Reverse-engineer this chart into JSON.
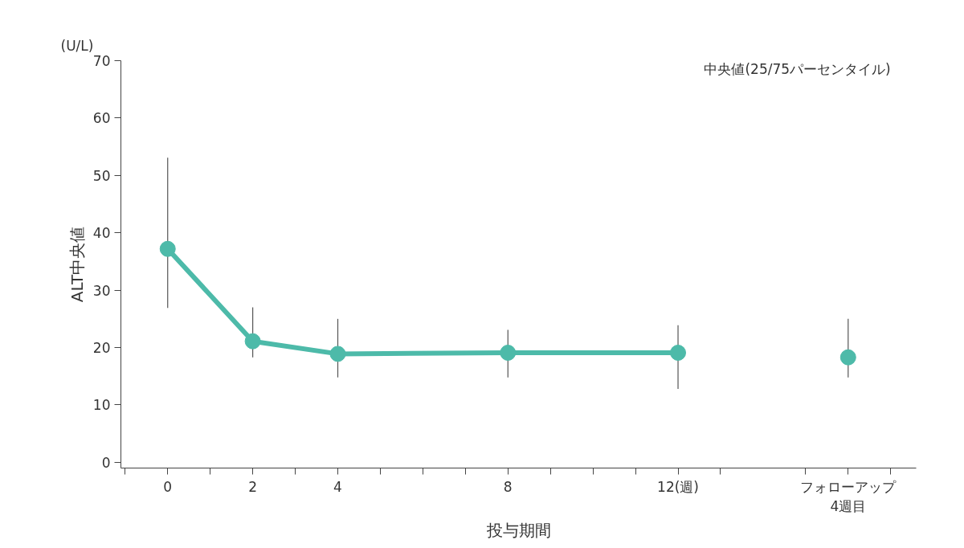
{
  "chart_data": {
    "type": "line",
    "xlabel": "投与期間",
    "ylabel": "ALT中央値",
    "annotations": [
      "(U/L)",
      "中央値(25/75パーセンタイル)"
    ],
    "xlim": [
      -1.1,
      17.6
    ],
    "ylim": [
      -1,
      70
    ],
    "yticks": [
      0,
      10,
      20,
      30,
      40,
      50,
      60,
      70
    ],
    "xticks": [
      {
        "value": -1,
        "label": null
      },
      0,
      {
        "value": 1,
        "label": null
      },
      2,
      {
        "value": 3,
        "label": null
      },
      4,
      {
        "value": 5,
        "label": null
      },
      {
        "value": 6,
        "label": null
      },
      {
        "value": 7,
        "label": null
      },
      8,
      {
        "value": 9,
        "label": null
      },
      {
        "value": 10,
        "label": null
      },
      {
        "value": 11,
        "label": null
      },
      {
        "value": 12,
        "label": "12(週)"
      },
      {
        "value": 13,
        "label": null
      },
      {
        "value": 15,
        "label": null
      },
      {
        "value": 16,
        "label": "フォローアップ\n4週目"
      },
      {
        "value": 17,
        "label": null
      }
    ],
    "grid": false,
    "marker": "circle",
    "series": [
      {
        "color": "#4dbaa9",
        "x": [
          0,
          2,
          4,
          8,
          12
        ],
        "values": [
          37.2,
          21.1,
          18.9,
          19.1,
          19.1
        ],
        "errors": [
          [
            26.9,
            53.1
          ],
          [
            18.3,
            27.0
          ],
          [
            14.8,
            25.0
          ],
          [
            14.8,
            23.1
          ],
          [
            12.8,
            23.9
          ]
        ]
      },
      {
        "type": "scatter",
        "color": "#4dbaa9",
        "x": [
          16
        ],
        "values": [
          18.3
        ],
        "errors": [
          [
            14.8,
            25.0
          ]
        ]
      }
    ]
  }
}
